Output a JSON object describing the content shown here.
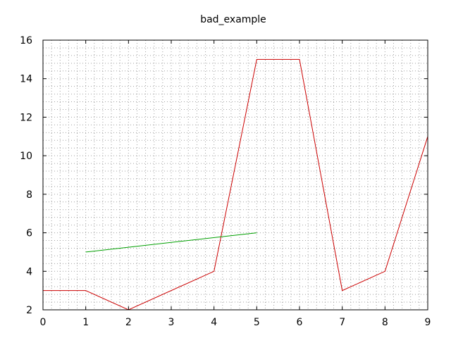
{
  "chart_data": {
    "type": "line",
    "title": "bad_example",
    "xlabel": "",
    "ylabel": "",
    "xlim": [
      0,
      9
    ],
    "ylim": [
      2,
      16
    ],
    "x_ticks": [
      0,
      1,
      2,
      3,
      4,
      5,
      6,
      7,
      8,
      9
    ],
    "y_ticks": [
      2,
      4,
      6,
      8,
      10,
      12,
      14,
      16
    ],
    "x_minor_step": 0.2,
    "y_minor_step": 0.4,
    "grid": true,
    "legend": "none",
    "series": [
      {
        "color": "#cc0000",
        "points": [
          [
            0,
            3
          ],
          [
            1,
            3
          ],
          [
            2,
            2
          ],
          [
            4,
            4
          ],
          [
            5,
            15
          ],
          [
            6,
            15
          ],
          [
            7,
            3
          ],
          [
            8,
            4
          ],
          [
            9,
            11
          ]
        ]
      },
      {
        "color": "#00a000",
        "points": [
          [
            1,
            5
          ],
          [
            5,
            6
          ]
        ]
      }
    ]
  }
}
